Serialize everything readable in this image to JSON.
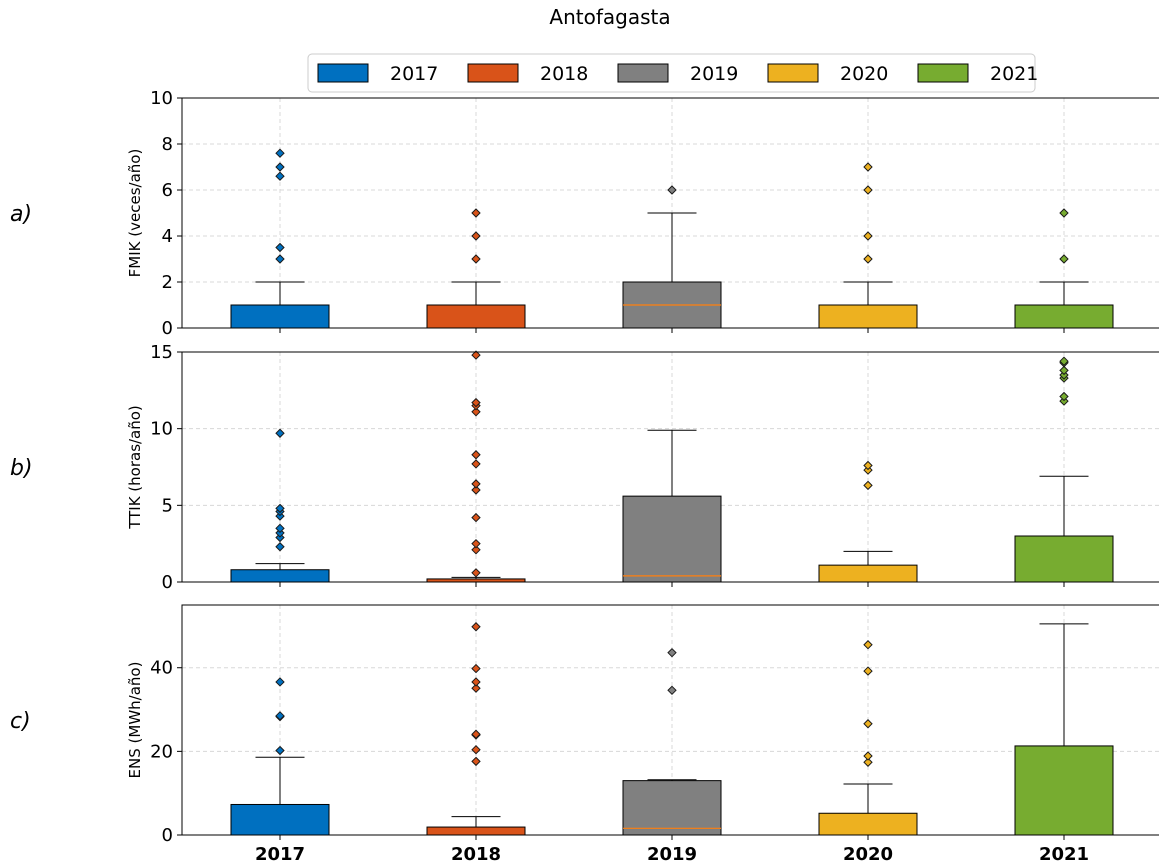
{
  "title": "Antofagasta",
  "legend": {
    "placement": "top-center",
    "entries": [
      {
        "label": "2017",
        "color": "#0070C0"
      },
      {
        "label": "2018",
        "color": "#D95319"
      },
      {
        "label": "2019",
        "color": "#808080"
      },
      {
        "label": "2020",
        "color": "#EDB120"
      },
      {
        "label": "2021",
        "color": "#77AC30"
      }
    ]
  },
  "chart_data": [
    {
      "type": "box",
      "panel_label": "a)",
      "ylabel": "FMIK (veces/año)",
      "ylim": [
        0,
        10
      ],
      "yticks": [
        0,
        2,
        4,
        6,
        8,
        10
      ],
      "categories": [
        "2017",
        "2018",
        "2019",
        "2020",
        "2021"
      ],
      "grid": true,
      "boxes": [
        {
          "q1": 0,
          "median": 0,
          "q3": 1,
          "whisker_low": 0,
          "whisker_high": 2,
          "outliers": [
            3,
            3.5,
            6.6,
            7,
            7.6
          ]
        },
        {
          "q1": 0,
          "median": 0,
          "q3": 1,
          "whisker_low": 0,
          "whisker_high": 2,
          "outliers": [
            3,
            4,
            5
          ]
        },
        {
          "q1": 0,
          "median": 1,
          "q3": 2,
          "whisker_low": 0,
          "whisker_high": 5,
          "outliers": [
            6
          ]
        },
        {
          "q1": 0,
          "median": 0,
          "q3": 1,
          "whisker_low": 0,
          "whisker_high": 2,
          "outliers": [
            3,
            4,
            6,
            7
          ]
        },
        {
          "q1": 0,
          "median": 0,
          "q3": 1,
          "whisker_low": 0,
          "whisker_high": 2,
          "outliers": [
            3,
            5
          ]
        }
      ]
    },
    {
      "type": "box",
      "panel_label": "b)",
      "ylabel": "TTIK (horas/año)",
      "ylim": [
        0,
        15
      ],
      "yticks": [
        0,
        5,
        10,
        15
      ],
      "categories": [
        "2017",
        "2018",
        "2019",
        "2020",
        "2021"
      ],
      "grid": true,
      "boxes": [
        {
          "q1": 0,
          "median": 0,
          "q3": 0.8,
          "whisker_low": 0,
          "whisker_high": 1.2,
          "outliers": [
            2.3,
            2.9,
            3.2,
            3.5,
            4.3,
            4.6,
            4.8,
            9.7
          ]
        },
        {
          "q1": 0,
          "median": 0,
          "q3": 0.2,
          "whisker_low": 0,
          "whisker_high": 0.3,
          "outliers": [
            0.6,
            2.1,
            2.5,
            4.2,
            6.0,
            6.4,
            7.7,
            8.3,
            11.1,
            11.5,
            11.7,
            14.8
          ]
        },
        {
          "q1": 0,
          "median": 0.4,
          "q3": 5.6,
          "whisker_low": 0,
          "whisker_high": 9.9,
          "outliers": []
        },
        {
          "q1": 0,
          "median": 0,
          "q3": 1.1,
          "whisker_low": 0,
          "whisker_high": 2.0,
          "outliers": [
            6.3,
            7.3,
            7.6
          ]
        },
        {
          "q1": 0,
          "median": 0,
          "q3": 3.0,
          "whisker_low": 0,
          "whisker_high": 6.9,
          "outliers": [
            11.8,
            12.1,
            13.3,
            13.5,
            13.8,
            14.3,
            14.4
          ]
        }
      ]
    },
    {
      "type": "box",
      "panel_label": "c)",
      "ylabel": "ENS (MWh/año)",
      "ylim": [
        0,
        55
      ],
      "yticks": [
        0,
        20,
        40
      ],
      "categories": [
        "2017",
        "2018",
        "2019",
        "2020",
        "2021"
      ],
      "grid": true,
      "boxes": [
        {
          "q1": 0,
          "median": 0,
          "q3": 7.3,
          "whisker_low": 0,
          "whisker_high": 18.6,
          "outliers": [
            20.2,
            28.3,
            28.5,
            36.6
          ]
        },
        {
          "q1": 0,
          "median": 0,
          "q3": 1.9,
          "whisker_low": 0,
          "whisker_high": 4.4,
          "outliers": [
            17.6,
            20.4,
            23.9,
            24.1,
            35.1,
            36.6,
            39.8,
            49.8
          ]
        },
        {
          "q1": 0,
          "median": 1.6,
          "q3": 13.0,
          "whisker_low": 0,
          "whisker_high": 13.2,
          "outliers": [
            34.6,
            43.6
          ]
        },
        {
          "q1": 0,
          "median": 0,
          "q3": 5.2,
          "whisker_low": 0,
          "whisker_high": 12.2,
          "outliers": [
            17.4,
            18.9,
            26.6,
            39.2,
            45.5
          ]
        },
        {
          "q1": 0,
          "median": 0,
          "q3": 21.3,
          "whisker_low": 0,
          "whisker_high": 50.5,
          "outliers": []
        }
      ]
    }
  ]
}
